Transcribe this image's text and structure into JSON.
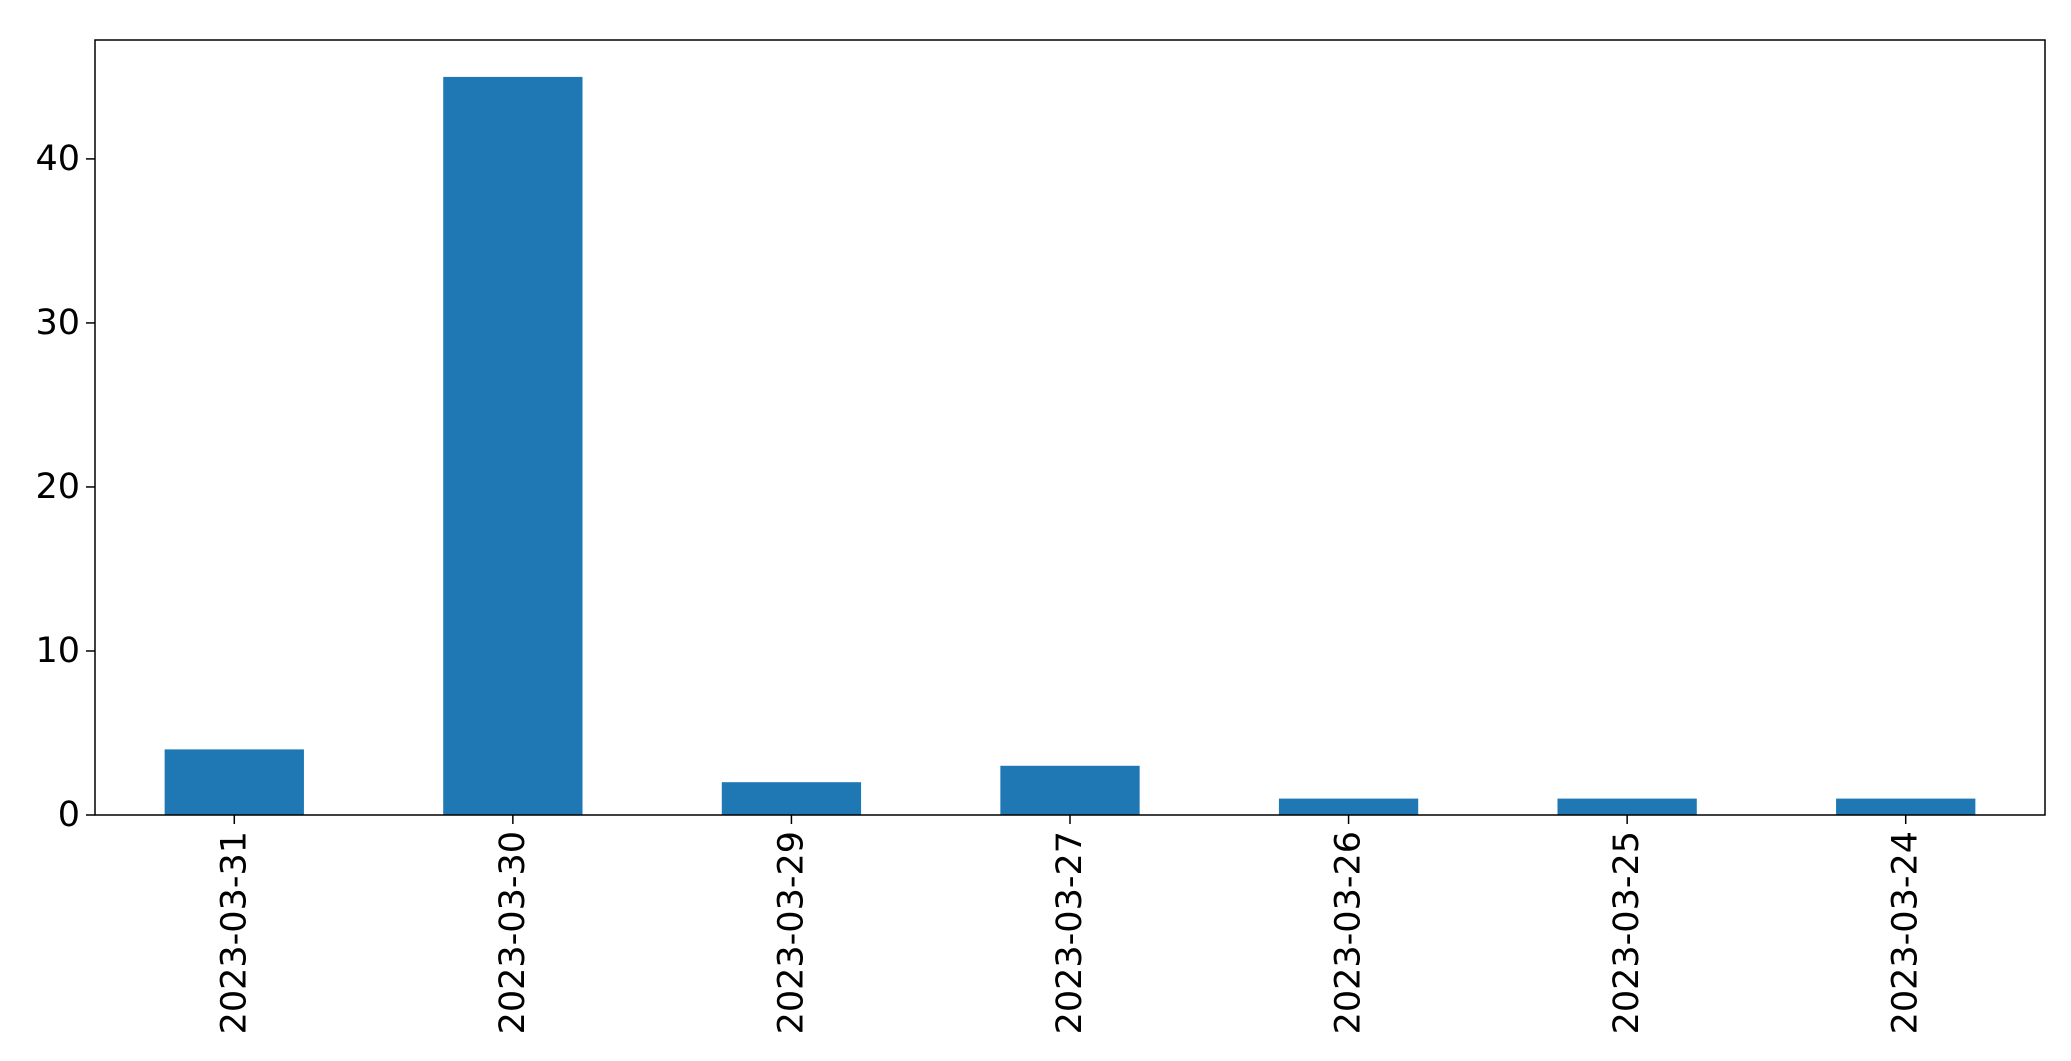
{
  "chart_data": {
    "type": "bar",
    "categories": [
      "2023-03-31",
      "2023-03-30",
      "2023-03-29",
      "2023-03-27",
      "2023-03-26",
      "2023-03-25",
      "2023-03-24"
    ],
    "values": [
      4,
      45,
      2,
      3,
      1,
      1,
      1
    ],
    "title": "",
    "xlabel": "",
    "ylabel": "",
    "ylim": [
      0,
      47.25
    ],
    "yticks": [
      0,
      10,
      20,
      30,
      40
    ],
    "grid": false,
    "legend": "none",
    "bar_color": "#1f77b4"
  }
}
